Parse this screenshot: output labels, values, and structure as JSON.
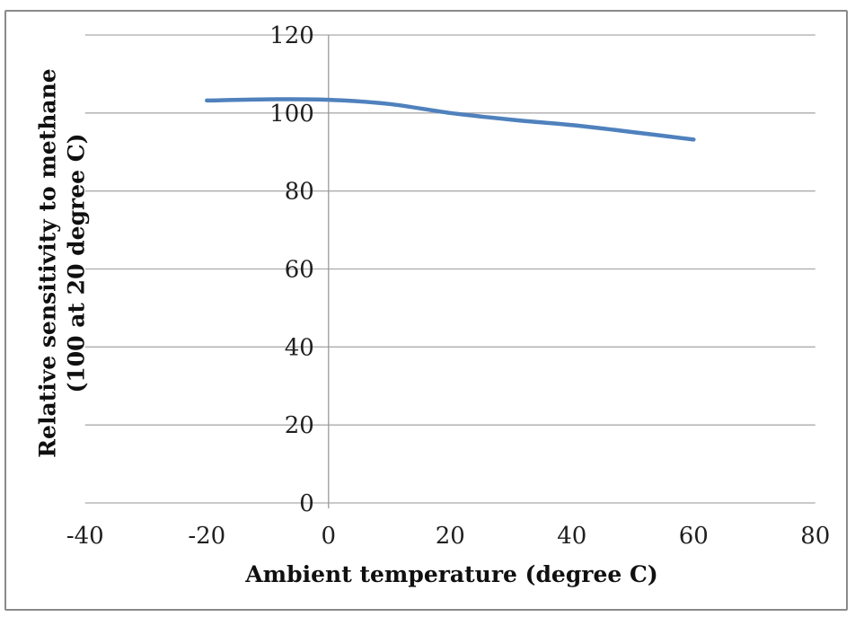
{
  "chart_data": {
    "type": "line",
    "title": "",
    "xlabel": "Ambient temperature (degree C)",
    "ylabel": "Relative sensitivity to methane (100 at 20 degree C)",
    "ylabel_lines": [
      "Relative sensitivity to methane",
      "(100 at 20 degree C)"
    ],
    "xlim": [
      -40,
      80
    ],
    "ylim": [
      0,
      120
    ],
    "xticks": [
      -40,
      -20,
      0,
      20,
      40,
      60,
      80
    ],
    "yticks": [
      0,
      20,
      40,
      60,
      80,
      100,
      120
    ],
    "grid": "horizontal-only",
    "legend": "none",
    "value_axis_at_x": 0,
    "series": [
      {
        "name": "Relative sensitivity to methane",
        "color": "#4F81BD",
        "smooth": true,
        "line_width": 4.5,
        "x": [
          -20,
          -10,
          0,
          10,
          20,
          30,
          40,
          50,
          60
        ],
        "y": [
          103.2,
          103.5,
          103.4,
          102.3,
          100.0,
          98.3,
          96.9,
          95.1,
          93.2
        ]
      }
    ],
    "colors": {
      "gridline": "#ABABAB",
      "axis_line": "#9A9A9A",
      "tick_text": "#1f1f1f",
      "frame_border": "#8a8a8a",
      "background": "#ffffff"
    }
  }
}
